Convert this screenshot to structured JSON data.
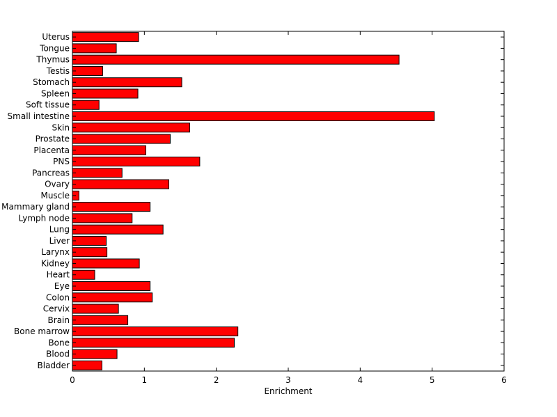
{
  "chart_data": {
    "type": "bar",
    "orientation": "horizontal",
    "title": "",
    "xlabel": "Enrichment",
    "ylabel": "",
    "xlim": [
      0,
      6
    ],
    "xticks": [
      "0",
      "1",
      "2",
      "3",
      "4",
      "5",
      "6"
    ],
    "grid": false,
    "bar_color": "#ff0000",
    "categories": [
      "Uterus",
      "Tongue",
      "Thymus",
      "Testis",
      "Stomach",
      "Spleen",
      "Soft tissue",
      "Small intestine",
      "Skin",
      "Prostate",
      "Placenta",
      "PNS",
      "Pancreas",
      "Ovary",
      "Muscle",
      "Mammary gland",
      "Lymph node",
      "Lung",
      "Liver",
      "Larynx",
      "Kidney",
      "Heart",
      "Eye",
      "Colon",
      "Cervix",
      "Brain",
      "Bone marrow",
      "Bone",
      "Blood",
      "Bladder"
    ],
    "values": [
      0.92,
      0.61,
      4.54,
      0.42,
      1.52,
      0.91,
      0.37,
      5.03,
      1.63,
      1.36,
      1.02,
      1.77,
      0.69,
      1.34,
      0.09,
      1.08,
      0.83,
      1.26,
      0.47,
      0.48,
      0.93,
      0.31,
      1.08,
      1.11,
      0.64,
      0.77,
      2.3,
      2.25,
      0.62,
      0.41
    ]
  }
}
